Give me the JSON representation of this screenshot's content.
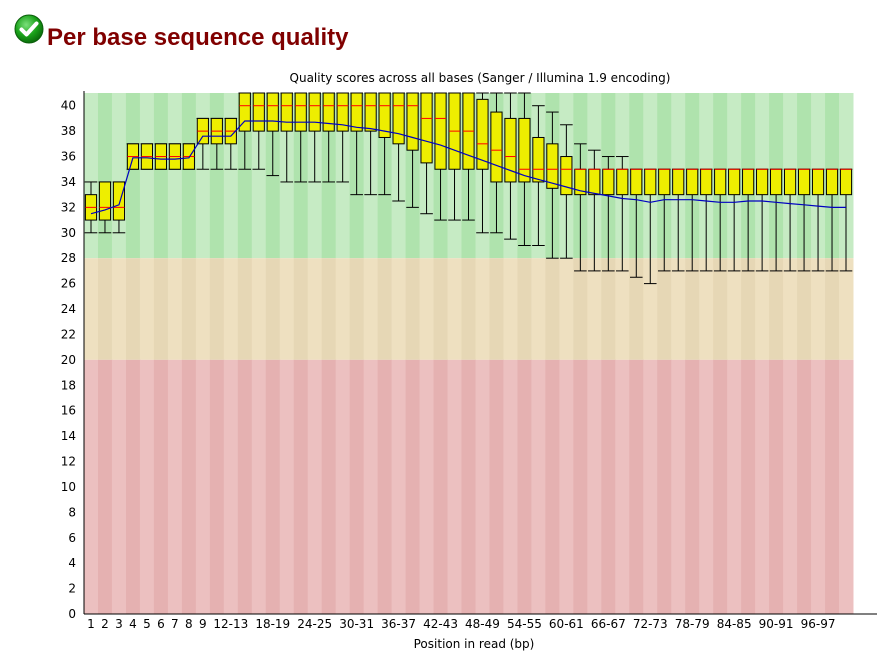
{
  "report": {
    "title": "Per base sequence quality",
    "status_icon": "pass-check-icon"
  },
  "colors": {
    "title": "#800000",
    "good_zone_light": "#c6ebc4",
    "good_zone_dark": "#afe3ad",
    "warn_zone_light": "#eee0c0",
    "warn_zone_dark": "#e6d7b5",
    "fail_zone_light": "#ecc0c0",
    "fail_zone_dark": "#e5b1b1",
    "box_fill": "#eeee00",
    "median": "#ff0000",
    "mean_line": "#0000c0",
    "whisker": "#000000"
  },
  "chart_data": {
    "type": "box",
    "title": "Quality scores across all bases (Sanger / Illumina 1.9 encoding)",
    "xlabel": "Position in read (bp)",
    "ylabel": "",
    "ylim": [
      0,
      41
    ],
    "yticks": [
      0,
      2,
      4,
      6,
      8,
      10,
      12,
      14,
      16,
      18,
      20,
      22,
      24,
      26,
      28,
      30,
      32,
      34,
      36,
      38,
      40
    ],
    "zones": [
      {
        "name": "good",
        "from": 28,
        "to": 41
      },
      {
        "name": "warning",
        "from": 20,
        "to": 28
      },
      {
        "name": "fail",
        "from": 0,
        "to": 20
      }
    ],
    "x_tick_labels": [
      "1",
      "2",
      "3",
      "4",
      "5",
      "6",
      "7",
      "8",
      "9",
      "12-13",
      "18-19",
      "24-25",
      "30-31",
      "36-37",
      "42-43",
      "48-49",
      "54-55",
      "60-61",
      "66-67",
      "72-73",
      "78-79",
      "84-85",
      "90-91",
      "96-97"
    ],
    "label_every_from": 9,
    "label_step": 3,
    "categories": [
      "1",
      "2",
      "3",
      "4",
      "5",
      "6",
      "7",
      "8",
      "9",
      "10-11",
      "12-13",
      "14-15",
      "16-17",
      "18-19",
      "20-21",
      "22-23",
      "24-25",
      "26-27",
      "28-29",
      "30-31",
      "32-33",
      "34-35",
      "36-37",
      "38-39",
      "40-41",
      "42-43",
      "44-45",
      "46-47",
      "48-49",
      "50-51",
      "52-53",
      "54-55",
      "56-57",
      "58-59",
      "60-61",
      "62-63",
      "64-65",
      "66-67",
      "68-69",
      "70-71",
      "72-73",
      "74-75",
      "76-77",
      "78-79",
      "80-81",
      "82-83",
      "84-85",
      "86-87",
      "88-89",
      "90-91",
      "92-93",
      "94-95",
      "96-97",
      "98-99",
      "100-101"
    ],
    "series": [
      {
        "name": "q10 (lower whisker)",
        "values": [
          30,
          30,
          30,
          35,
          35,
          35,
          35,
          35,
          35,
          35,
          35,
          35,
          35,
          34.5,
          34,
          34,
          34,
          34,
          34,
          33,
          33,
          33,
          32.5,
          32,
          31.5,
          31,
          31,
          31,
          30,
          30,
          29.5,
          29,
          29,
          28,
          28,
          27,
          27,
          27,
          27,
          26.5,
          26,
          27,
          27,
          27,
          27,
          27,
          27,
          27,
          27,
          27,
          27,
          27,
          27,
          27,
          27
        ]
      },
      {
        "name": "q25 (box bottom)",
        "values": [
          31,
          31,
          31,
          35,
          35,
          35,
          35,
          35,
          37,
          37,
          37,
          38,
          38,
          38,
          38,
          38,
          38,
          38,
          38,
          38,
          38,
          37.5,
          37,
          36.5,
          35.5,
          35,
          35,
          35,
          35,
          34,
          34,
          34,
          34,
          33.5,
          33,
          33,
          33,
          33,
          33,
          33,
          33,
          33,
          33,
          33,
          33,
          33,
          33,
          33,
          33,
          33,
          33,
          33,
          33,
          33,
          33
        ]
      },
      {
        "name": "median",
        "values": [
          32,
          32,
          32,
          36,
          36,
          36,
          36,
          36,
          38,
          38,
          38,
          40,
          40,
          40,
          40,
          40,
          40,
          40,
          40,
          40,
          40,
          40,
          40,
          40,
          39,
          39,
          38,
          38,
          37,
          36.5,
          36,
          35,
          35,
          35,
          35,
          35,
          35,
          35,
          35,
          35,
          35,
          35,
          35,
          35,
          35,
          35,
          35,
          35,
          35,
          35,
          35,
          35,
          35,
          35,
          35
        ]
      },
      {
        "name": "q75 (box top)",
        "values": [
          33,
          34,
          34,
          37,
          37,
          37,
          37,
          37,
          39,
          39,
          39,
          41,
          41,
          41,
          41,
          41,
          41,
          41,
          41,
          41,
          41,
          41,
          41,
          41,
          41,
          41,
          41,
          41,
          40.5,
          39.5,
          39,
          39,
          37.5,
          37,
          36,
          35,
          35,
          35,
          35,
          35,
          35,
          35,
          35,
          35,
          35,
          35,
          35,
          35,
          35,
          35,
          35,
          35,
          35,
          35,
          35
        ]
      },
      {
        "name": "q90 (upper whisker)",
        "values": [
          34,
          34,
          34,
          37,
          37,
          37,
          37,
          37,
          39,
          39,
          39,
          41,
          41,
          41,
          41,
          41,
          41,
          41,
          41,
          41,
          41,
          41,
          41,
          41,
          41,
          41,
          41,
          41,
          41,
          41,
          41,
          41,
          40,
          39.5,
          38.5,
          37,
          36.5,
          36,
          36,
          35,
          35,
          35,
          35,
          35,
          35,
          35,
          35,
          35,
          35,
          35,
          35,
          35,
          35,
          35,
          35
        ]
      },
      {
        "name": "mean",
        "values": [
          31.5,
          31.8,
          32.2,
          35.9,
          35.9,
          35.8,
          35.8,
          35.9,
          37.6,
          37.6,
          37.6,
          38.8,
          38.8,
          38.8,
          38.7,
          38.7,
          38.7,
          38.6,
          38.5,
          38.3,
          38.2,
          38.0,
          37.8,
          37.5,
          37.2,
          36.9,
          36.5,
          36.1,
          35.7,
          35.3,
          34.9,
          34.5,
          34.2,
          33.9,
          33.6,
          33.3,
          33.1,
          32.9,
          32.7,
          32.6,
          32.4,
          32.6,
          32.6,
          32.6,
          32.5,
          32.4,
          32.4,
          32.5,
          32.5,
          32.4,
          32.3,
          32.2,
          32.1,
          32.0,
          32.0
        ]
      }
    ]
  }
}
